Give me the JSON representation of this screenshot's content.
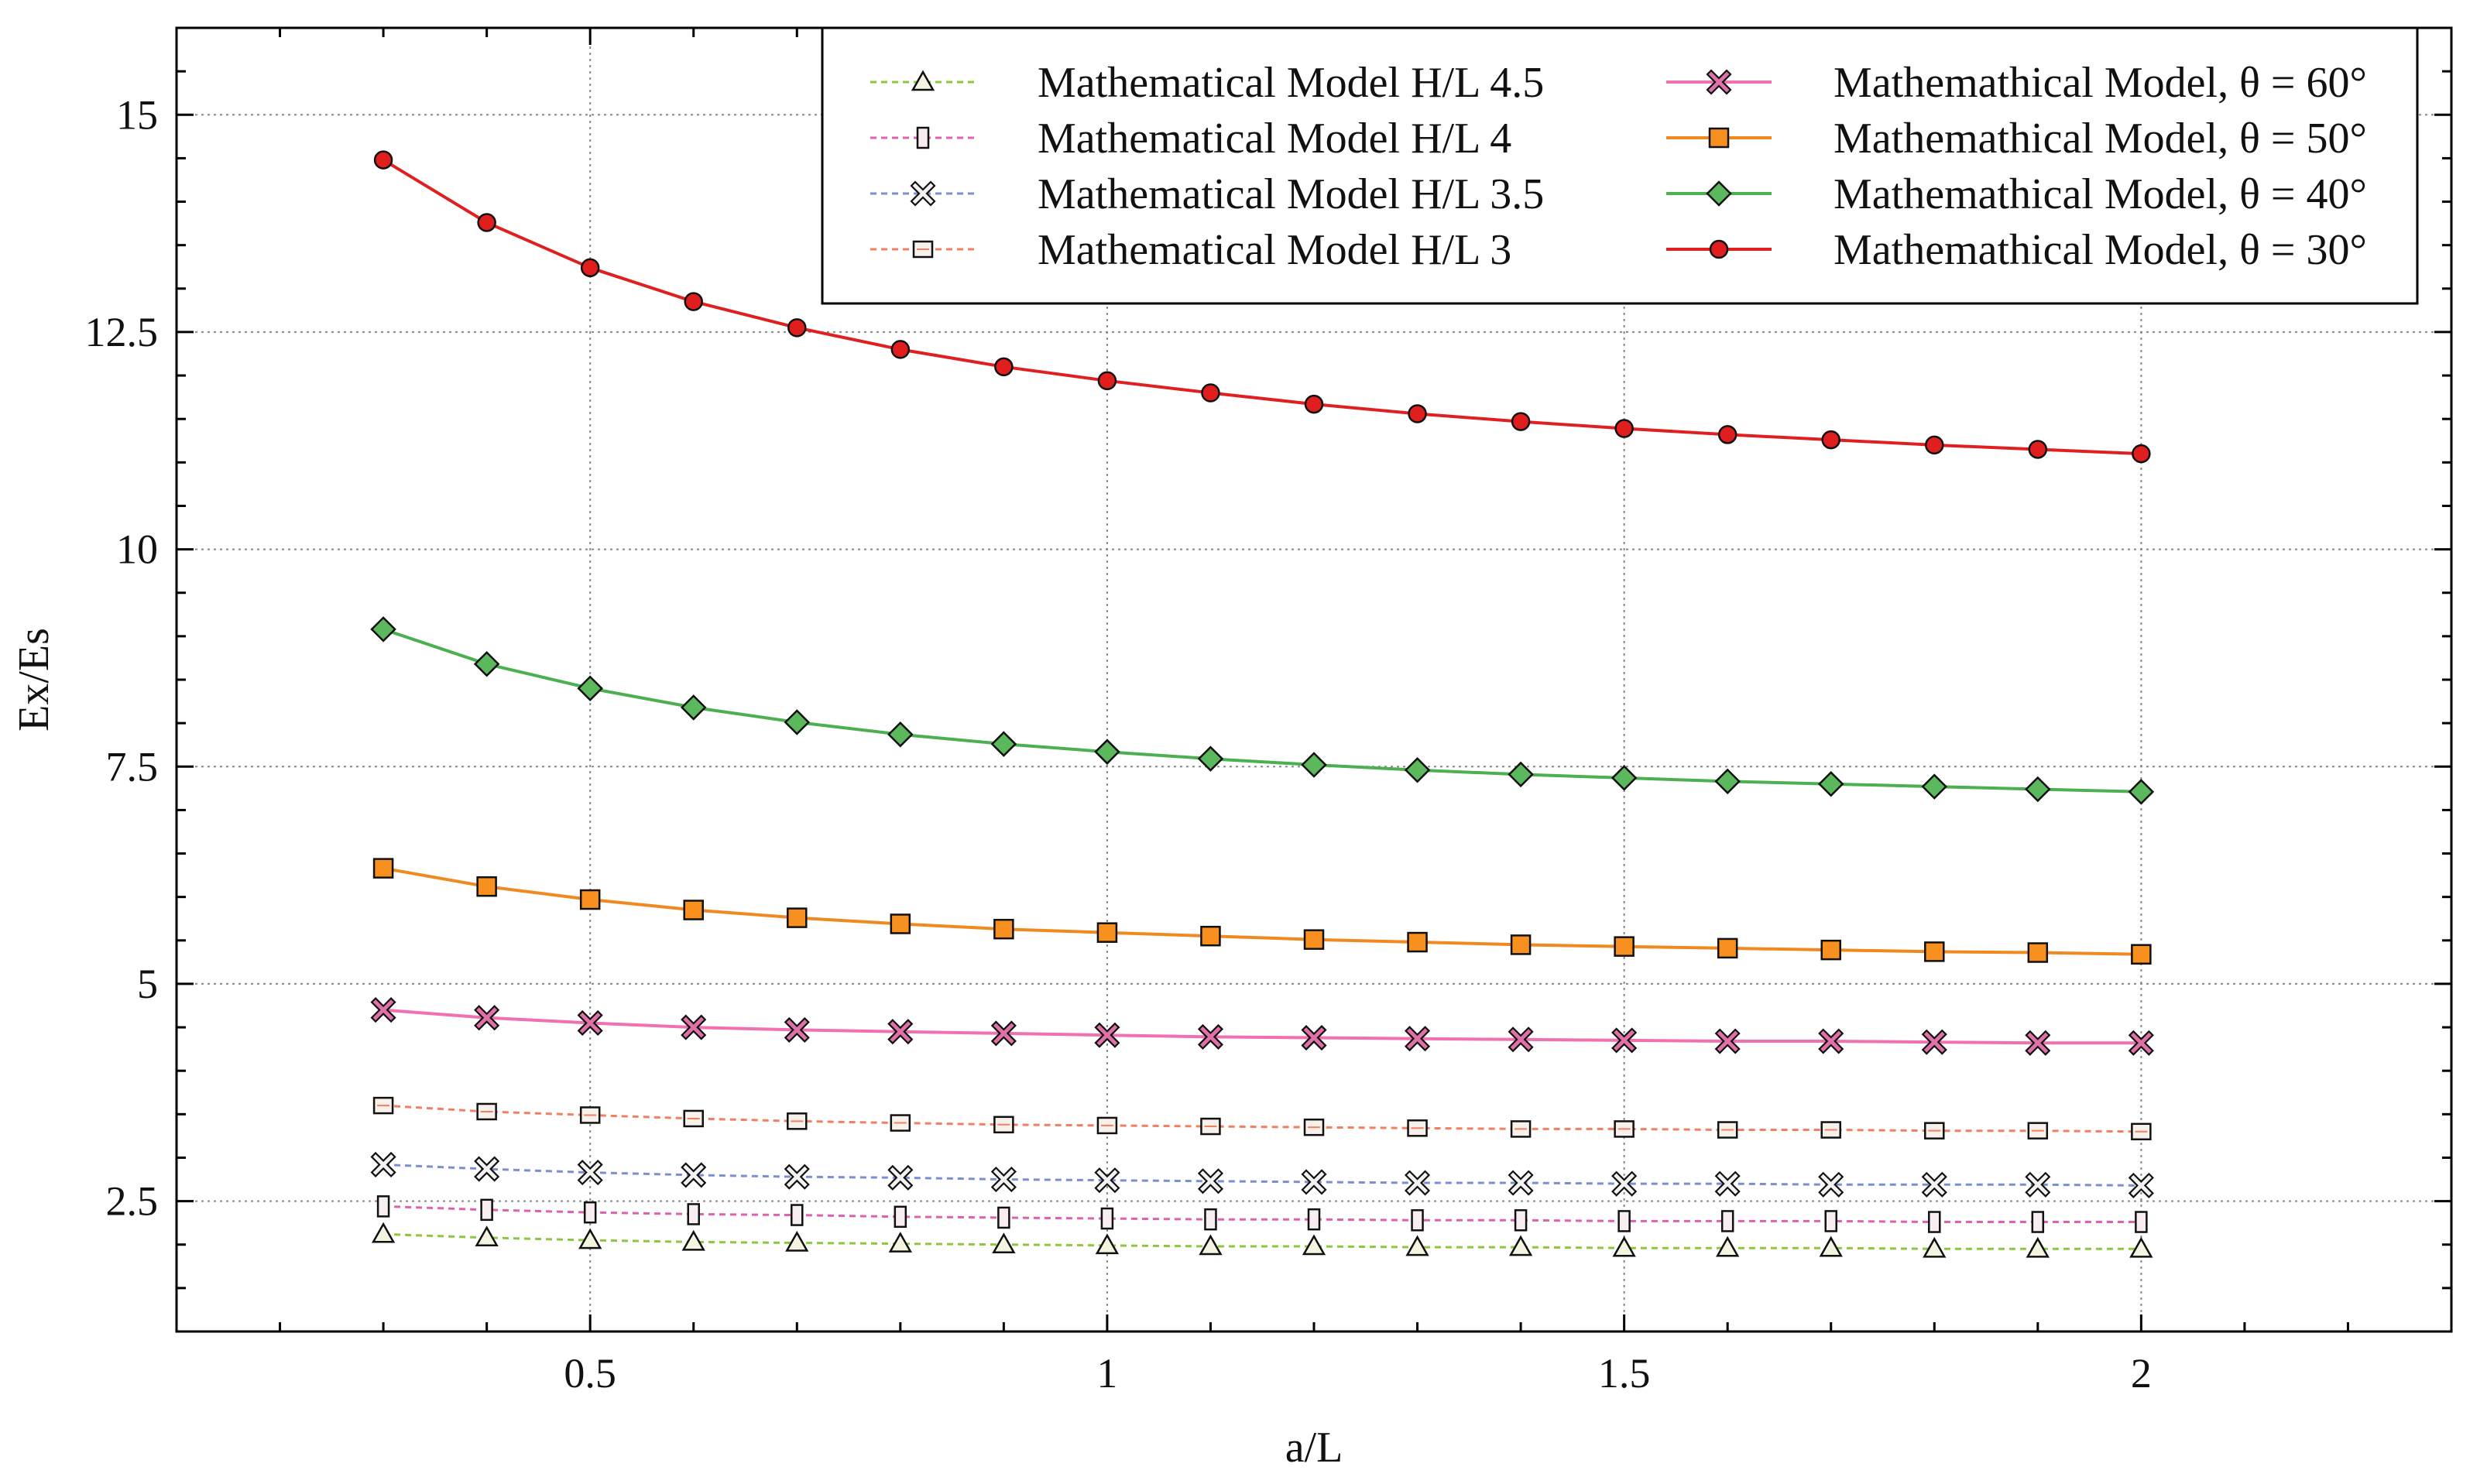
{
  "chart_data": {
    "type": "line",
    "title": "",
    "xlabel": "a/L",
    "ylabel": "Ex/Es",
    "xlim": [
      0.1,
      2.3
    ],
    "ylim": [
      1,
      16
    ],
    "xticks": [
      0.5,
      1,
      1.5,
      2
    ],
    "xtick_labels": [
      "0.5",
      "1",
      "1.5",
      "2"
    ],
    "yticks": [
      2.5,
      5,
      7.5,
      10,
      12.5,
      15
    ],
    "ytick_labels": [
      "2.5",
      "5",
      "7.5",
      "10",
      "12.5",
      "15"
    ],
    "grid": true,
    "legend_position": "top-right",
    "x": [
      0.3,
      0.4,
      0.5,
      0.6,
      0.7,
      0.8,
      0.9,
      1.0,
      1.1,
      1.2,
      1.3,
      1.4,
      1.5,
      1.6,
      1.7,
      1.8,
      1.9,
      2.0
    ],
    "series": [
      {
        "name": "Mathematical Model H/L 4.5",
        "color": "#8dc63f",
        "line": "dashed",
        "marker": "triangle",
        "marker_fill": "#f4f4e0",
        "values": [
          2.12,
          2.08,
          2.05,
          2.03,
          2.02,
          2.01,
          2.0,
          1.99,
          1.98,
          1.98,
          1.97,
          1.97,
          1.96,
          1.96,
          1.96,
          1.95,
          1.95,
          1.95
        ]
      },
      {
        "name": "Mathematical Model H/L 4",
        "color": "#e060b0",
        "line": "dashed",
        "marker": "tall-rect",
        "marker_fill": "#f8eef2",
        "values": [
          2.44,
          2.4,
          2.37,
          2.35,
          2.34,
          2.32,
          2.31,
          2.3,
          2.29,
          2.29,
          2.28,
          2.28,
          2.27,
          2.27,
          2.27,
          2.26,
          2.26,
          2.26
        ]
      },
      {
        "name": "Mathematical Model H/L 3.5",
        "color": "#7b8fd0",
        "line": "dashed",
        "marker": "x",
        "marker_fill": "#f2f2f2",
        "values": [
          2.92,
          2.87,
          2.83,
          2.8,
          2.78,
          2.77,
          2.75,
          2.74,
          2.73,
          2.72,
          2.71,
          2.71,
          2.7,
          2.7,
          2.69,
          2.69,
          2.69,
          2.68
        ]
      },
      {
        "name": "Mathematical Model H/L 3",
        "color": "#f08060",
        "line": "dashed",
        "marker": "wide-rect",
        "marker_fill": "#f8f0ea",
        "values": [
          3.6,
          3.53,
          3.49,
          3.45,
          3.42,
          3.4,
          3.38,
          3.37,
          3.36,
          3.35,
          3.34,
          3.33,
          3.33,
          3.32,
          3.32,
          3.31,
          3.31,
          3.3
        ]
      },
      {
        "name": "Mathemathical Model, θ = 60°",
        "color": "#f070b0",
        "line": "solid",
        "marker": "x-filled",
        "marker_fill": "#e070a8",
        "values": [
          4.7,
          4.61,
          4.55,
          4.5,
          4.47,
          4.45,
          4.43,
          4.41,
          4.39,
          4.38,
          4.37,
          4.36,
          4.35,
          4.34,
          4.34,
          4.33,
          4.32,
          4.32
        ]
      },
      {
        "name": "Mathemathical Model, θ = 50°",
        "color": "#f08a20",
        "line": "solid",
        "marker": "square",
        "marker_fill": "#f7901e",
        "values": [
          6.33,
          6.12,
          5.97,
          5.85,
          5.76,
          5.69,
          5.63,
          5.59,
          5.55,
          5.51,
          5.48,
          5.45,
          5.43,
          5.41,
          5.39,
          5.37,
          5.36,
          5.34
        ]
      },
      {
        "name": "Mathemathical Model, θ = 40°",
        "color": "#4caf50",
        "line": "solid",
        "marker": "diamond",
        "marker_fill": "#5cb85c",
        "values": [
          9.08,
          8.68,
          8.4,
          8.18,
          8.01,
          7.87,
          7.76,
          7.67,
          7.59,
          7.52,
          7.46,
          7.41,
          7.37,
          7.33,
          7.3,
          7.27,
          7.24,
          7.21
        ]
      },
      {
        "name": "Mathemathical Model, θ = 30°",
        "color": "#e02020",
        "line": "solid",
        "marker": "circle",
        "marker_fill": "#e01e1e",
        "values": [
          14.48,
          13.76,
          13.24,
          12.85,
          12.55,
          12.3,
          12.1,
          11.94,
          11.8,
          11.67,
          11.56,
          11.47,
          11.39,
          11.32,
          11.26,
          11.2,
          11.15,
          11.1
        ]
      }
    ]
  }
}
